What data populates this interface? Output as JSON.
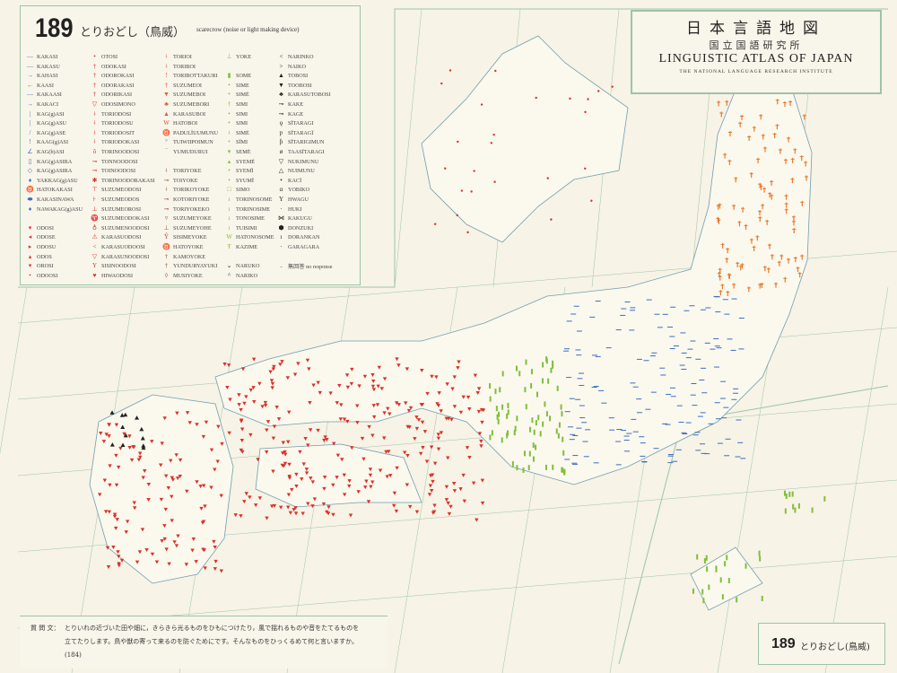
{
  "map_number": "189",
  "title_jp": "とりおどし（鳥威）",
  "title_en": "scarecrow (noise or light making device)",
  "atlas": {
    "title_jp": "日本言語地図",
    "institute_jp": "国立国語研究所",
    "title_en": "LINGUISTIC ATLAS OF JAPAN",
    "institute_en": "THE NATIONAL LANGUAGE RESEARCH INSTITUTE"
  },
  "question": {
    "label": "質 問 文：",
    "text": "とりいれの近づいた田や畑に，きらきら光るものをひもにつけたり，風で揺れるものや音をたてるものを立てたりします。鳥や獣の寄って来るのを防ぐためにです。そんなものをひっくるめて何と言いますか。(184)"
  },
  "footer": {
    "number": "189",
    "title": "とりおどし(鳥威)"
  },
  "colors": {
    "background": "#f7f3e6",
    "grid": "#9cc4a6",
    "red": "#d8322a",
    "green": "#7fbf3a",
    "blue": "#3a6fc0",
    "black": "#222222",
    "orange": "#e87a2a"
  },
  "legend": [
    [
      {
        "s": "—",
        "l": "KAKASI",
        "c": "#3a6fc0"
      },
      {
        "s": "—",
        "l": "KAKASU",
        "c": "#3a6fc0"
      },
      {
        "s": "→",
        "l": "KAHASI",
        "c": "#3a6fc0"
      },
      {
        "s": "←",
        "l": "KAASI",
        "c": "#3a6fc0"
      },
      {
        "s": "—",
        "l": "KAKAASI",
        "c": "#3a6fc0"
      },
      {
        "s": "→",
        "l": "KAKACI",
        "c": "#3a6fc0"
      },
      {
        "s": "|",
        "l": "KAG(g)ASI",
        "c": "#3a6fc0"
      },
      {
        "s": "|",
        "l": "KAG(g)ASU",
        "c": "#3a6fc0"
      },
      {
        "s": "/",
        "l": "KAG(g)ASE",
        "c": "#3a6fc0"
      },
      {
        "s": "!",
        "l": "KAAG(g)ASI",
        "c": "#3a6fc0"
      },
      {
        "s": "∠",
        "l": "KAG(b)ASI",
        "c": "#3a6fc0"
      },
      {
        "s": "▯",
        "l": "KAG(g)ASIRA",
        "c": "#3a6fc0"
      },
      {
        "s": "◇",
        "l": "KAG(g)ASIRA",
        "c": "#3a6fc0"
      },
      {
        "s": "♦",
        "l": "YAKKAG(g)ASU",
        "c": "#3a6fc0"
      },
      {
        "s": "♉",
        "l": "HATOKAKASI",
        "c": "#3a6fc0"
      },
      {
        "s": "⬬",
        "l": "KAKASINAWA",
        "c": "#3a6fc0"
      },
      {
        "s": "♦",
        "l": "NAWAKAG(g)ASU",
        "c": "#3a6fc0"
      },
      {
        "s": "",
        "l": "",
        "c": ""
      },
      {
        "s": "▾",
        "l": "ODOSI",
        "c": "#d8322a"
      },
      {
        "s": "◂",
        "l": "ODOSE",
        "c": "#d8322a"
      },
      {
        "s": "▸",
        "l": "ODOSU",
        "c": "#d8322a"
      },
      {
        "s": "▴",
        "l": "ODOS",
        "c": "#d8322a"
      },
      {
        "s": "▾",
        "l": "OROSI",
        "c": "#d8322a"
      },
      {
        "s": "•",
        "l": "ODOOSI",
        "c": "#d8322a"
      }
    ],
    [
      {
        "s": "•",
        "l": "OTOSI",
        "c": "#d8322a"
      },
      {
        "s": "†",
        "l": "ODOKASI",
        "c": "#d8322a"
      },
      {
        "s": "†",
        "l": "ODOROKASI",
        "c": "#d8322a"
      },
      {
        "s": "†",
        "l": "ODORAKASI",
        "c": "#d8322a"
      },
      {
        "s": "†",
        "l": "ODORIKASI",
        "c": "#d8322a"
      },
      {
        "s": "▽",
        "l": "ODOSIMONO",
        "c": "#d8322a"
      },
      {
        "s": "ǂ",
        "l": "TORIODOSI",
        "c": "#d8322a"
      },
      {
        "s": "ǂ",
        "l": "TORIODOSU",
        "c": "#d8322a"
      },
      {
        "s": "ǂ",
        "l": "TORIODOSIT",
        "c": "#d8322a"
      },
      {
        "s": "ǂ",
        "l": "TORIODOKASI",
        "c": "#d8322a"
      },
      {
        "s": "ô",
        "l": "TORINOODOSI",
        "c": "#d8322a"
      },
      {
        "s": "⊸",
        "l": "TONNOODOSI",
        "c": "#d8322a"
      },
      {
        "s": "⊸",
        "l": "TOINOODOSI",
        "c": "#d8322a"
      },
      {
        "s": "✱",
        "l": "TORINOODORAKASI",
        "c": "#d8322a"
      },
      {
        "s": "⊤",
        "l": "SUZUMEODOSI",
        "c": "#d8322a"
      },
      {
        "s": "⊦",
        "l": "SUZUMEODOS",
        "c": "#d8322a"
      },
      {
        "s": "⊥",
        "l": "SUZUMEOROSI",
        "c": "#d8322a"
      },
      {
        "s": "♈",
        "l": "SUZUMEODOKASI",
        "c": "#d8322a"
      },
      {
        "s": "♁",
        "l": "SUZUMENOODOSI",
        "c": "#d8322a"
      },
      {
        "s": "⚠",
        "l": "KARASUODOSI",
        "c": "#d8322a"
      },
      {
        "s": "<",
        "l": "KARASUODOOSI",
        "c": "#d8322a"
      },
      {
        "s": "▽",
        "l": "KARASUNOODOSI",
        "c": "#d8322a"
      },
      {
        "s": "Y",
        "l": "SISINOODOSI",
        "c": "#d8322a"
      },
      {
        "s": "♥",
        "l": "HIWAODOSI",
        "c": "#d8322a"
      }
    ],
    [
      {
        "s": "ǂ",
        "l": "TORIOI",
        "c": "#e05a3a"
      },
      {
        "s": "ǂ",
        "l": "TORIBOI",
        "c": "#e05a3a"
      },
      {
        "s": "!",
        "l": "TORIBOTTAKURI",
        "c": "#e05a3a"
      },
      {
        "s": "†",
        "l": "SUZUMEOI",
        "c": "#e05a3a"
      },
      {
        "s": "▼",
        "l": "SUZUMEBOI",
        "c": "#e05a3a"
      },
      {
        "s": "♣",
        "l": "SUZUMEBORI",
        "c": "#e05a3a"
      },
      {
        "s": "▲",
        "l": "KARASUBOI",
        "c": "#e05a3a"
      },
      {
        "s": "W",
        "l": "HATOBOI",
        "c": "#e05a3a"
      },
      {
        "s": "♉",
        "l": "PADULÏUUMUNU",
        "c": "#e05a3a"
      },
      {
        "s": "°",
        "l": "TUIWIIPOIMUN",
        "c": "#e05a3a"
      },
      {
        "s": "‾",
        "l": "YUMUDURUI",
        "c": "#e05a3a"
      },
      {
        "s": "",
        "l": "",
        "c": ""
      },
      {
        "s": "ǂ",
        "l": "TORIYOKE",
        "c": "#a0523a"
      },
      {
        "s": "⊸",
        "l": "TOIYOKE",
        "c": "#a0523a"
      },
      {
        "s": "ǂ",
        "l": "TORIKOYOKE",
        "c": "#a0523a"
      },
      {
        "s": "⊸",
        "l": "KOTORIYOKE",
        "c": "#a0523a"
      },
      {
        "s": "⊸",
        "l": "TORIYOKEKO",
        "c": "#a0523a"
      },
      {
        "s": "▿",
        "l": "SUZUMEYOKE",
        "c": "#a0523a"
      },
      {
        "s": "⊥",
        "l": "SUZUMEYOHE",
        "c": "#a0523a"
      },
      {
        "s": "Ŷ",
        "l": "SISIMEYOKE",
        "c": "#a0523a"
      },
      {
        "s": "♉",
        "l": "HATOYOKE",
        "c": "#a0523a"
      },
      {
        "s": "†",
        "l": "KAMOYOKE",
        "c": "#a0523a"
      },
      {
        "s": "†",
        "l": "YUNDURYAYUKI",
        "c": "#a0523a"
      },
      {
        "s": "◊",
        "l": "MUSIYOKE",
        "c": "#a0523a"
      }
    ],
    [
      {
        "s": "⊥",
        "l": "YOKE",
        "c": "#7fbf3a"
      },
      {
        "s": "",
        "l": "",
        "c": ""
      },
      {
        "s": "▮",
        "l": "SOME",
        "c": "#7fbf3a"
      },
      {
        "s": "•",
        "l": "SIME",
        "c": "#7fbf3a"
      },
      {
        "s": "•",
        "l": "SIMĖ",
        "c": "#7fbf3a"
      },
      {
        "s": "†",
        "l": "SIMI",
        "c": "#7fbf3a"
      },
      {
        "s": "•",
        "l": "SIMI",
        "c": "#7fbf3a"
      },
      {
        "s": "•",
        "l": "SIMI",
        "c": "#7fbf3a"
      },
      {
        "s": "ǂ",
        "l": "SIMĖ",
        "c": "#7fbf3a"
      },
      {
        "s": "•",
        "l": "SÏMI",
        "c": "#7fbf3a"
      },
      {
        "s": "▾",
        "l": "SEMĖ",
        "c": "#7fbf3a"
      },
      {
        "s": "▴",
        "l": "SYEMĖ",
        "c": "#7fbf3a"
      },
      {
        "s": "•",
        "l": "SYEMÏ",
        "c": "#7fbf3a"
      },
      {
        "s": "•",
        "l": "SYUMÏ",
        "c": "#7fbf3a"
      },
      {
        "s": "□",
        "l": "SIMO",
        "c": "#7fbf3a"
      },
      {
        "s": "ı",
        "l": "TORINOSOME",
        "c": "#7fbf3a"
      },
      {
        "s": "ı",
        "l": "TORINOSIME",
        "c": "#7fbf3a"
      },
      {
        "s": "ı",
        "l": "TONOSIME",
        "c": "#7fbf3a"
      },
      {
        "s": "ı",
        "l": "TUISIMI",
        "c": "#7fbf3a"
      },
      {
        "s": "W",
        "l": "HATONOSOME",
        "c": "#7fbf3a"
      },
      {
        "s": "Ŧ",
        "l": "KAZIME",
        "c": "#7fbf3a"
      },
      {
        "s": "",
        "l": "",
        "c": ""
      },
      {
        "s": "⌄",
        "l": "NARUKO",
        "c": "#222222"
      },
      {
        "s": "^",
        "l": "NARIKO",
        "c": "#222222"
      }
    ],
    [
      {
        "s": "<",
        "l": "NARINKO",
        "c": "#222222"
      },
      {
        "s": ">",
        "l": "NAIKO",
        "c": "#222222"
      },
      {
        "s": "▲",
        "l": "TOBOSI",
        "c": "#222222"
      },
      {
        "s": "▼",
        "l": "TOOBOSI",
        "c": "#222222"
      },
      {
        "s": "♣",
        "l": "KARASUTOBOSI",
        "c": "#222222"
      },
      {
        "s": "⊸",
        "l": "KAKE",
        "c": "#222222"
      },
      {
        "s": "⊸",
        "l": "KAGE",
        "c": "#222222"
      },
      {
        "s": "ǫ",
        "l": "SÏTARAGI",
        "c": "#222222"
      },
      {
        "s": "ƿ",
        "l": "SÏTARAGÏ",
        "c": "#222222"
      },
      {
        "s": "ƥ",
        "l": "SÏTARIGIMUN",
        "c": "#222222"
      },
      {
        "s": "ø",
        "l": "TAASÏTARAGI",
        "c": "#222222"
      },
      {
        "s": "▽",
        "l": "NUKIMUNU",
        "c": "#222222"
      },
      {
        "s": "△",
        "l": "NUIMUNU",
        "c": "#222222"
      },
      {
        "s": "•",
        "l": "KACÏ",
        "c": "#222222"
      },
      {
        "s": "ɑ",
        "l": "YOBIKO",
        "c": "#222222"
      },
      {
        "s": "Y",
        "l": "HWAGU",
        "c": "#222222"
      },
      {
        "s": "·",
        "l": "HUKI",
        "c": "#222222"
      },
      {
        "s": "⋈",
        "l": "KAKUGU",
        "c": "#222222"
      },
      {
        "s": "⬢",
        "l": "DONZUKI",
        "c": "#222222"
      },
      {
        "s": "ı",
        "l": "DORANKAN",
        "c": "#222222"
      },
      {
        "s": "·",
        "l": "GARAGARA",
        "c": "#222222"
      },
      {
        "s": "",
        "l": "",
        "c": ""
      },
      {
        "s": "-",
        "l": "無回答 no response",
        "c": "#d8322a"
      }
    ]
  ]
}
